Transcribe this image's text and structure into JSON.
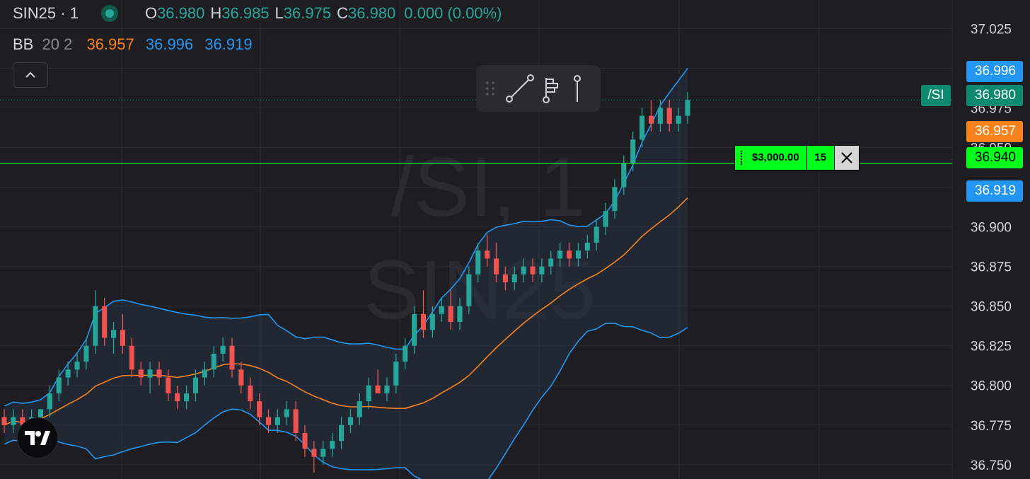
{
  "header": {
    "symbol": "SIN25 · 1",
    "open_label": "O",
    "open": "36.980",
    "high_label": "H",
    "high": "36.985",
    "low_label": "L",
    "low": "36.975",
    "close_label": "C",
    "close": "36.980",
    "change": "0.000 (0.00%)"
  },
  "indicator": {
    "name": "BB",
    "params": "20 2",
    "middle": "36.957",
    "upper": "36.996",
    "lower": "36.919"
  },
  "watermark": {
    "line1": "/SI, 1",
    "line2": "SIN25"
  },
  "price_labels": {
    "upper_band": "36.996",
    "last": "36.980",
    "symbol_tag": "/SI",
    "middle_band": "36.957",
    "order_price": "36.940",
    "lower_band": "36.919"
  },
  "order": {
    "amount": "$3,000.00",
    "quantity": "15",
    "order_price_value": 36.94
  },
  "colors": {
    "up": "#26a69a",
    "down": "#ef5350",
    "upper_band": "#2196f3",
    "middle_band": "#f7821b",
    "lower_band": "#2196f3",
    "order_line": "#00ff1a",
    "last_price": "#0d8a70",
    "band_fill": "#253244"
  },
  "icons": [
    "collapse-chevron-icon",
    "grip-icon",
    "trend-line-icon",
    "fib-tool-icon",
    "pin-icon",
    "close-icon",
    "tradingview-logo-icon"
  ],
  "chart_data": {
    "type": "candlestick",
    "ylim": [
      36.741,
      37.043
    ],
    "y_ticks": [
      "37.025",
      "37.000",
      "36.975",
      "36.950",
      "36.925",
      "36.900",
      "36.875",
      "36.850",
      "36.825",
      "36.800",
      "36.775",
      "36.750"
    ],
    "candles_ohlc": [
      [
        36.78,
        36.785,
        36.77,
        36.775
      ],
      [
        36.775,
        36.785,
        36.77,
        36.78
      ],
      [
        36.78,
        36.785,
        36.775,
        36.775
      ],
      [
        36.775,
        36.785,
        36.77,
        36.78
      ],
      [
        36.78,
        36.785,
        36.775,
        36.785
      ],
      [
        36.785,
        36.8,
        36.78,
        36.795
      ],
      [
        36.795,
        36.81,
        36.79,
        36.805
      ],
      [
        36.805,
        36.815,
        36.8,
        36.81
      ],
      [
        36.81,
        36.82,
        36.805,
        36.815
      ],
      [
        36.815,
        36.83,
        36.81,
        36.825
      ],
      [
        36.825,
        36.86,
        36.82,
        36.85
      ],
      [
        36.85,
        36.855,
        36.825,
        36.83
      ],
      [
        36.83,
        36.84,
        36.82,
        36.835
      ],
      [
        36.835,
        36.845,
        36.82,
        36.825
      ],
      [
        36.825,
        36.83,
        36.805,
        36.81
      ],
      [
        36.81,
        36.815,
        36.8,
        36.805
      ],
      [
        36.805,
        36.815,
        36.795,
        36.81
      ],
      [
        36.81,
        36.815,
        36.8,
        36.805
      ],
      [
        36.805,
        36.81,
        36.79,
        36.795
      ],
      [
        36.795,
        36.8,
        36.785,
        36.79
      ],
      [
        36.79,
        36.8,
        36.785,
        36.795
      ],
      [
        36.795,
        36.81,
        36.79,
        36.805
      ],
      [
        36.805,
        36.815,
        36.8,
        36.81
      ],
      [
        36.81,
        36.825,
        36.805,
        36.82
      ],
      [
        36.82,
        36.83,
        36.815,
        36.825
      ],
      [
        36.825,
        36.83,
        36.805,
        36.81
      ],
      [
        36.81,
        36.815,
        36.795,
        36.8
      ],
      [
        36.8,
        36.805,
        36.785,
        36.79
      ],
      [
        36.79,
        36.795,
        36.775,
        36.78
      ],
      [
        36.78,
        36.785,
        36.77,
        36.775
      ],
      [
        36.775,
        36.785,
        36.77,
        36.78
      ],
      [
        36.78,
        36.79,
        36.775,
        36.785
      ],
      [
        36.785,
        36.79,
        36.765,
        36.77
      ],
      [
        36.77,
        36.775,
        36.755,
        36.76
      ],
      [
        36.76,
        36.765,
        36.745,
        36.755
      ],
      [
        36.755,
        36.765,
        36.75,
        36.76
      ],
      [
        36.76,
        36.77,
        36.755,
        36.765
      ],
      [
        36.765,
        36.78,
        36.76,
        36.775
      ],
      [
        36.775,
        36.785,
        36.77,
        36.78
      ],
      [
        36.78,
        36.795,
        36.775,
        36.79
      ],
      [
        36.79,
        36.805,
        36.785,
        36.8
      ],
      [
        36.8,
        36.81,
        36.795,
        36.795
      ],
      [
        36.795,
        36.805,
        36.79,
        36.8
      ],
      [
        36.8,
        36.82,
        36.795,
        36.815
      ],
      [
        36.815,
        36.83,
        36.81,
        36.825
      ],
      [
        36.825,
        36.85,
        36.82,
        36.845
      ],
      [
        36.845,
        36.86,
        36.83,
        36.835
      ],
      [
        36.835,
        36.85,
        36.83,
        36.845
      ],
      [
        36.845,
        36.855,
        36.84,
        36.85
      ],
      [
        36.85,
        36.86,
        36.835,
        36.84
      ],
      [
        36.84,
        36.855,
        36.835,
        36.85
      ],
      [
        36.85,
        36.875,
        36.845,
        36.87
      ],
      [
        36.87,
        36.89,
        36.865,
        36.885
      ],
      [
        36.885,
        36.895,
        36.875,
        36.88
      ],
      [
        36.88,
        36.89,
        36.865,
        36.87
      ],
      [
        36.87,
        36.875,
        36.86,
        36.865
      ],
      [
        36.865,
        36.875,
        36.86,
        36.87
      ],
      [
        36.87,
        36.88,
        36.865,
        36.875
      ],
      [
        36.875,
        36.88,
        36.865,
        36.87
      ],
      [
        36.87,
        36.88,
        36.865,
        36.875
      ],
      [
        36.875,
        36.885,
        36.87,
        36.88
      ],
      [
        36.88,
        36.89,
        36.875,
        36.885
      ],
      [
        36.885,
        36.89,
        36.875,
        36.88
      ],
      [
        36.88,
        36.89,
        36.875,
        36.885
      ],
      [
        36.885,
        36.895,
        36.88,
        36.89
      ],
      [
        36.89,
        36.905,
        36.885,
        36.9
      ],
      [
        36.9,
        36.915,
        36.895,
        36.91
      ],
      [
        36.91,
        36.93,
        36.905,
        36.925
      ],
      [
        36.925,
        36.945,
        36.92,
        36.94
      ],
      [
        36.94,
        36.96,
        36.935,
        36.955
      ],
      [
        36.955,
        36.975,
        36.95,
        36.97
      ],
      [
        36.97,
        36.98,
        36.96,
        36.965
      ],
      [
        36.965,
        36.98,
        36.96,
        36.975
      ],
      [
        36.975,
        36.98,
        36.96,
        36.965
      ],
      [
        36.965,
        36.975,
        36.96,
        36.97
      ],
      [
        36.97,
        36.985,
        36.965,
        36.98
      ]
    ]
  }
}
